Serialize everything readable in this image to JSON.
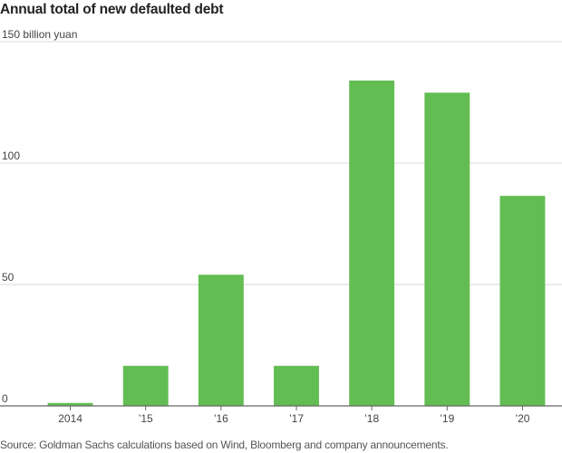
{
  "title": "Annual total of new defaulted debt",
  "source": "Source: Goldman Sachs calculations based on Wind, Bloomberg and company announcements.",
  "colors": {
    "bar": "#62bd52",
    "grid": "#d8d8d8",
    "axis": "#666666",
    "text": "#444444"
  },
  "chart_data": {
    "type": "bar",
    "title": "Annual total of new defaulted debt",
    "categories": [
      "2014",
      "’15",
      "’16",
      "’17",
      "’18",
      "’19",
      "’20"
    ],
    "values": [
      1.2,
      16.5,
      54,
      16.5,
      134,
      129,
      86.5
    ],
    "ylim": [
      0,
      150
    ],
    "yticks": [
      0,
      50,
      100,
      150
    ],
    "ytick_labels": [
      "0",
      "50",
      "100",
      "150 billion yuan"
    ],
    "ylabel": "",
    "xlabel": "",
    "grid": true
  }
}
